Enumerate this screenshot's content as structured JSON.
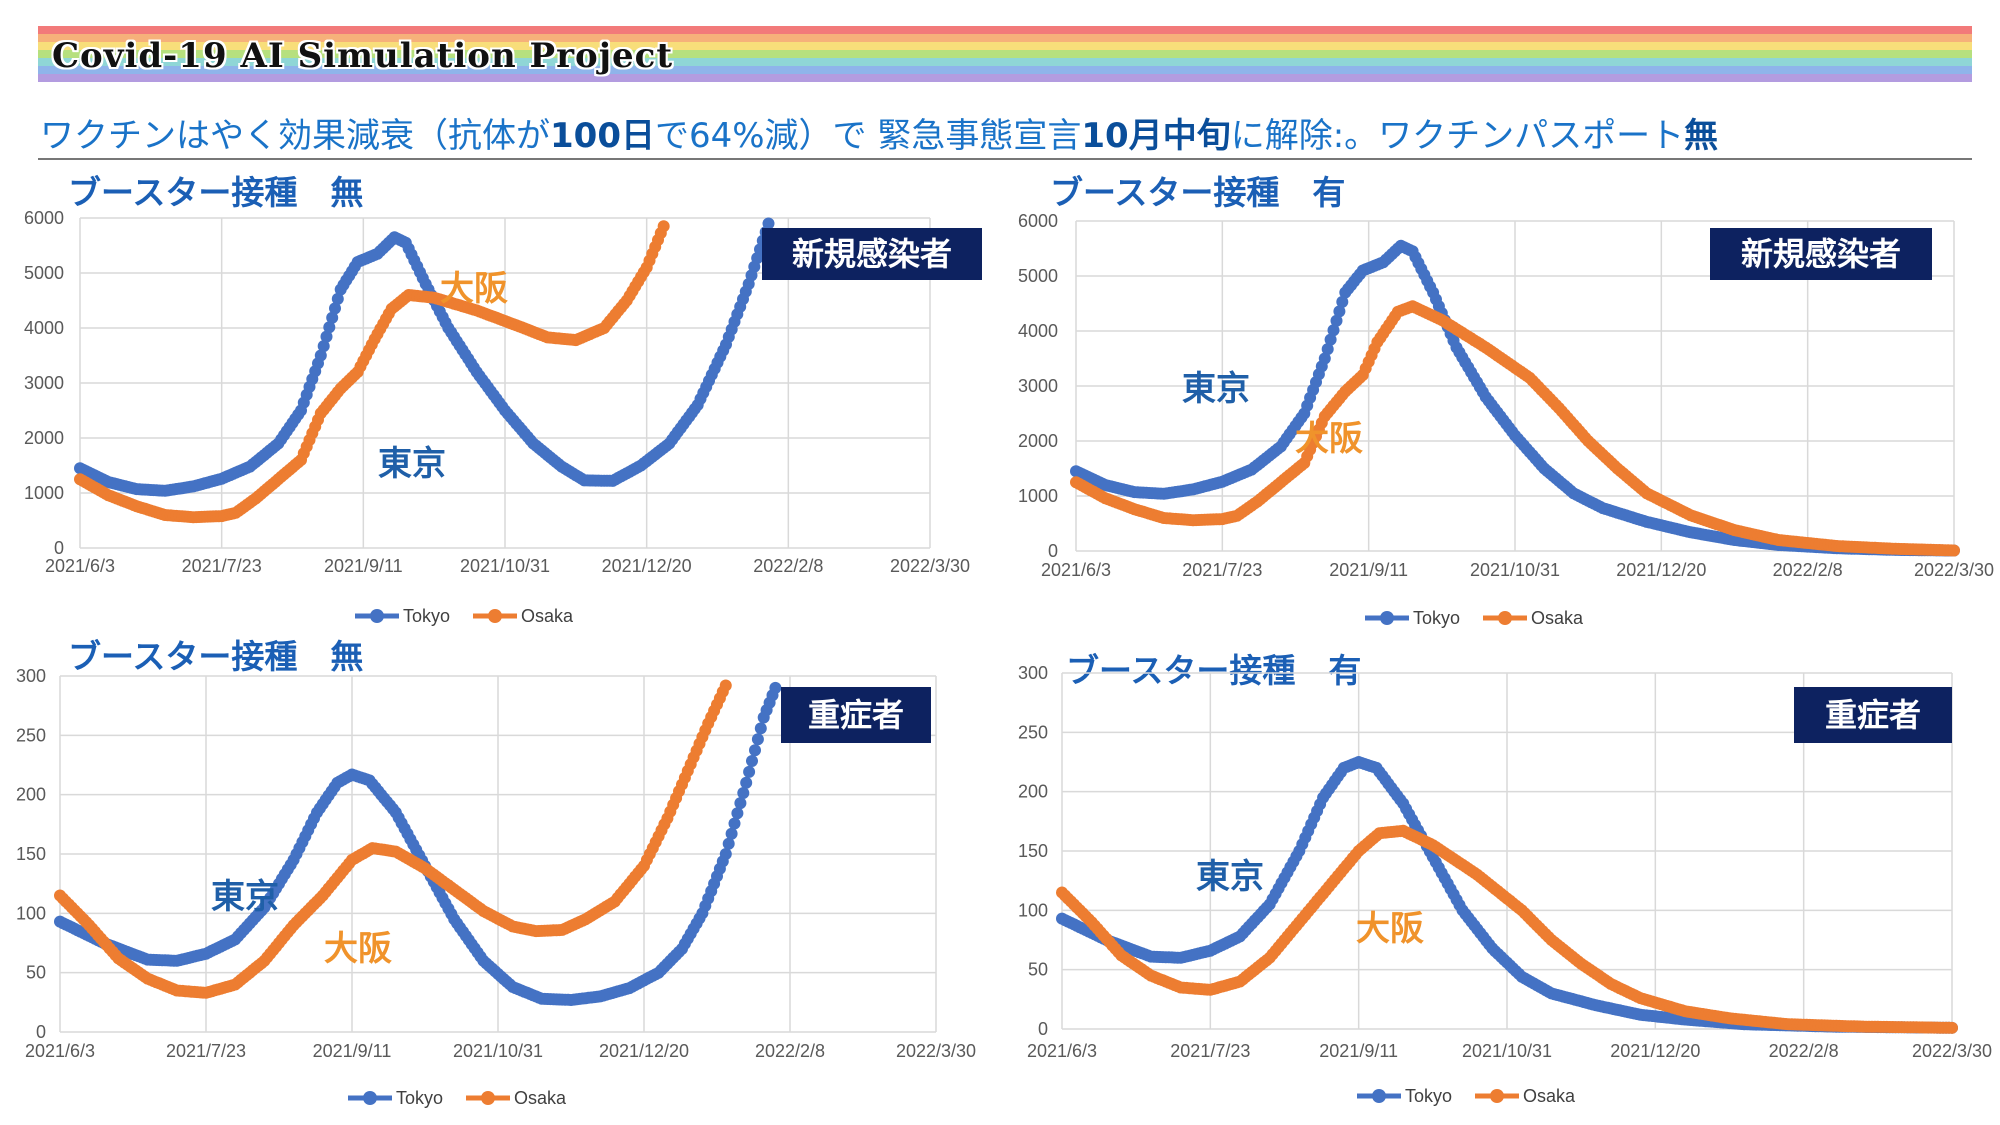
{
  "banner": {
    "title": "Covid-19 AI Simulation Project",
    "stripe_colors": [
      "#f27a7a",
      "#f6b17a",
      "#f8de7a",
      "#b6e07e",
      "#8fd6d6",
      "#8fb4ea",
      "#b39ce0"
    ]
  },
  "subtitle": {
    "part1": "ワクチンはやく効果減衰（抗体が",
    "part2": "100日",
    "part3": "で64%減）で 緊急事態宣言",
    "part4": "10月中旬",
    "part5": "に解除:。ワクチンパスポート",
    "part6": "無"
  },
  "colors": {
    "tokyo": "#4472c4",
    "osaka": "#ed7d31",
    "label_tokyo": "#1f5fa8",
    "label_osaka": "#f0932b",
    "badge_bg": "#0d2260"
  },
  "panels": [
    {
      "title": "ブースター接種　無",
      "badge": "新規感染者"
    },
    {
      "title": "ブースター接種　有",
      "badge": "新規感染者"
    },
    {
      "title": "ブースター接種　無",
      "badge": "重症者"
    },
    {
      "title": "ブースター接種　有",
      "badge": "重症者"
    }
  ],
  "chart_data": [
    {
      "type": "scatter",
      "title": "ブースター接種　無",
      "badge": "新規感染者",
      "x_ticks": [
        "2021/6/3",
        "2021/7/23",
        "2021/9/11",
        "2021/10/31",
        "2021/12/20",
        "2022/2/8",
        "2022/3/30"
      ],
      "ylim": [
        0,
        6000
      ],
      "y_ticks": [
        0,
        1000,
        2000,
        3000,
        4000,
        5000,
        6000
      ],
      "grid": true,
      "legend": "bottom",
      "annotations": [
        {
          "text": "大阪",
          "series": "Osaka"
        },
        {
          "text": "東京",
          "series": "Tokyo"
        }
      ],
      "series": [
        {
          "name": "Tokyo",
          "points": [
            [
              0,
              1450
            ],
            [
              10,
              1200
            ],
            [
              20,
              1070
            ],
            [
              30,
              1040
            ],
            [
              40,
              1120
            ],
            [
              50,
              1260
            ],
            [
              60,
              1480
            ],
            [
              70,
              1900
            ],
            [
              78,
              2500
            ],
            [
              85,
              3500
            ],
            [
              92,
              4700
            ],
            [
              98,
              5200
            ],
            [
              105,
              5350
            ],
            [
              111,
              5650
            ],
            [
              115,
              5550
            ],
            [
              122,
              4800
            ],
            [
              130,
              4000
            ],
            [
              140,
              3200
            ],
            [
              150,
              2500
            ],
            [
              160,
              1900
            ],
            [
              170,
              1480
            ],
            [
              178,
              1230
            ],
            [
              188,
              1220
            ],
            [
              198,
              1500
            ],
            [
              208,
              1900
            ],
            [
              218,
              2600
            ],
            [
              228,
              3700
            ],
            [
              236,
              4800
            ],
            [
              243,
              5900
            ]
          ]
        },
        {
          "name": "Osaka",
          "points": [
            [
              0,
              1250
            ],
            [
              10,
              960
            ],
            [
              20,
              760
            ],
            [
              30,
              600
            ],
            [
              40,
              560
            ],
            [
              50,
              580
            ],
            [
              55,
              640
            ],
            [
              62,
              900
            ],
            [
              70,
              1250
            ],
            [
              78,
              1600
            ],
            [
              85,
              2450
            ],
            [
              92,
              2900
            ],
            [
              98,
              3200
            ],
            [
              104,
              3800
            ],
            [
              110,
              4350
            ],
            [
              116,
              4600
            ],
            [
              125,
              4550
            ],
            [
              140,
              4320
            ],
            [
              155,
              4030
            ],
            [
              165,
              3830
            ],
            [
              175,
              3780
            ],
            [
              185,
              4000
            ],
            [
              193,
              4500
            ],
            [
              200,
              5100
            ],
            [
              206,
              5850
            ]
          ]
        }
      ]
    },
    {
      "type": "scatter",
      "title": "ブースター接種　有",
      "badge": "新規感染者",
      "x_ticks": [
        "2021/6/3",
        "2021/7/23",
        "2021/9/11",
        "2021/10/31",
        "2021/12/20",
        "2022/2/8",
        "2022/3/30"
      ],
      "ylim": [
        0,
        6000
      ],
      "y_ticks": [
        0,
        1000,
        2000,
        3000,
        4000,
        5000,
        6000
      ],
      "grid": true,
      "legend": "bottom",
      "annotations": [
        {
          "text": "東京",
          "series": "Tokyo"
        },
        {
          "text": "大阪",
          "series": "Osaka"
        }
      ],
      "series": [
        {
          "name": "Tokyo",
          "points": [
            [
              0,
              1450
            ],
            [
              10,
              1200
            ],
            [
              20,
              1070
            ],
            [
              30,
              1040
            ],
            [
              40,
              1120
            ],
            [
              50,
              1260
            ],
            [
              60,
              1480
            ],
            [
              70,
              1900
            ],
            [
              78,
              2500
            ],
            [
              85,
              3500
            ],
            [
              92,
              4700
            ],
            [
              98,
              5100
            ],
            [
              105,
              5250
            ],
            [
              111,
              5550
            ],
            [
              115,
              5450
            ],
            [
              122,
              4700
            ],
            [
              130,
              3700
            ],
            [
              140,
              2800
            ],
            [
              150,
              2100
            ],
            [
              160,
              1500
            ],
            [
              170,
              1050
            ],
            [
              180,
              780
            ],
            [
              195,
              530
            ],
            [
              210,
              340
            ],
            [
              225,
              200
            ],
            [
              240,
              110
            ],
            [
              260,
              50
            ],
            [
              280,
              20
            ],
            [
              300,
              8
            ]
          ]
        },
        {
          "name": "Osaka",
          "points": [
            [
              0,
              1250
            ],
            [
              10,
              960
            ],
            [
              20,
              760
            ],
            [
              30,
              600
            ],
            [
              40,
              560
            ],
            [
              50,
              580
            ],
            [
              55,
              640
            ],
            [
              62,
              900
            ],
            [
              70,
              1250
            ],
            [
              78,
              1600
            ],
            [
              85,
              2450
            ],
            [
              92,
              2900
            ],
            [
              98,
              3200
            ],
            [
              103,
              3800
            ],
            [
              110,
              4350
            ],
            [
              115,
              4450
            ],
            [
              125,
              4200
            ],
            [
              140,
              3700
            ],
            [
              155,
              3150
            ],
            [
              165,
              2600
            ],
            [
              175,
              2000
            ],
            [
              185,
              1500
            ],
            [
              195,
              1050
            ],
            [
              210,
              650
            ],
            [
              225,
              380
            ],
            [
              240,
              200
            ],
            [
              260,
              90
            ],
            [
              280,
              40
            ],
            [
              300,
              10
            ]
          ]
        }
      ]
    },
    {
      "type": "scatter",
      "title": "ブースター接種　無",
      "badge": "重症者",
      "x_ticks": [
        "2021/6/3",
        "2021/7/23",
        "2021/9/11",
        "2021/10/31",
        "2021/12/20",
        "2022/2/8",
        "2022/3/30"
      ],
      "ylim": [
        0,
        300
      ],
      "y_ticks": [
        0,
        50,
        100,
        150,
        200,
        250,
        300
      ],
      "grid": true,
      "legend": "bottom",
      "annotations": [
        {
          "text": "東京",
          "series": "Tokyo"
        },
        {
          "text": "大阪",
          "series": "Osaka"
        }
      ],
      "series": [
        {
          "name": "Tokyo",
          "points": [
            [
              0,
              93
            ],
            [
              15,
              75
            ],
            [
              30,
              61
            ],
            [
              40,
              60
            ],
            [
              50,
              66
            ],
            [
              60,
              78
            ],
            [
              70,
              105
            ],
            [
              80,
              145
            ],
            [
              88,
              185
            ],
            [
              95,
              210
            ],
            [
              100,
              217
            ],
            [
              106,
              212
            ],
            [
              115,
              185
            ],
            [
              125,
              140
            ],
            [
              135,
              95
            ],
            [
              145,
              60
            ],
            [
              155,
              38
            ],
            [
              165,
              28
            ],
            [
              175,
              27
            ],
            [
              185,
              30
            ],
            [
              195,
              37
            ],
            [
              205,
              50
            ],
            [
              213,
              70
            ],
            [
              220,
              100
            ],
            [
              228,
              150
            ],
            [
              235,
              210
            ],
            [
              241,
              265
            ],
            [
              245,
              290
            ]
          ]
        },
        {
          "name": "Osaka",
          "points": [
            [
              0,
              115
            ],
            [
              10,
              90
            ],
            [
              20,
              62
            ],
            [
              30,
              45
            ],
            [
              40,
              35
            ],
            [
              50,
              33
            ],
            [
              60,
              40
            ],
            [
              70,
              60
            ],
            [
              80,
              90
            ],
            [
              90,
              115
            ],
            [
              100,
              145
            ],
            [
              107,
              155
            ],
            [
              115,
              152
            ],
            [
              125,
              138
            ],
            [
              135,
              120
            ],
            [
              145,
              102
            ],
            [
              155,
              89
            ],
            [
              163,
              85
            ],
            [
              172,
              86
            ],
            [
              180,
              95
            ],
            [
              190,
              110
            ],
            [
              200,
              140
            ],
            [
              208,
              180
            ],
            [
              215,
              220
            ],
            [
              222,
              260
            ],
            [
              228,
              292
            ]
          ]
        }
      ]
    },
    {
      "type": "scatter",
      "title": "ブースター接種　有",
      "badge": "重症者",
      "x_ticks": [
        "2021/6/3",
        "2021/7/23",
        "2021/9/11",
        "2021/10/31",
        "2021/12/20",
        "2022/2/8",
        "2022/3/30"
      ],
      "ylim": [
        0,
        300
      ],
      "y_ticks": [
        0,
        50,
        100,
        150,
        200,
        250,
        300
      ],
      "grid": true,
      "legend": "bottom",
      "annotations": [
        {
          "text": "東京",
          "series": "Tokyo"
        },
        {
          "text": "大阪",
          "series": "Osaka"
        }
      ],
      "series": [
        {
          "name": "Tokyo",
          "points": [
            [
              0,
              93
            ],
            [
              15,
              75
            ],
            [
              30,
              61
            ],
            [
              40,
              60
            ],
            [
              50,
              66
            ],
            [
              60,
              78
            ],
            [
              70,
              105
            ],
            [
              80,
              150
            ],
            [
              88,
              195
            ],
            [
              95,
              220
            ],
            [
              100,
              225
            ],
            [
              106,
              220
            ],
            [
              115,
              190
            ],
            [
              125,
              145
            ],
            [
              135,
              100
            ],
            [
              145,
              68
            ],
            [
              155,
              44
            ],
            [
              165,
              30
            ],
            [
              180,
              20
            ],
            [
              195,
              12
            ],
            [
              210,
              8
            ],
            [
              230,
              4
            ],
            [
              260,
              2
            ],
            [
              300,
              1
            ]
          ]
        },
        {
          "name": "Osaka",
          "points": [
            [
              0,
              115
            ],
            [
              10,
              90
            ],
            [
              20,
              62
            ],
            [
              30,
              45
            ],
            [
              40,
              35
            ],
            [
              50,
              33
            ],
            [
              60,
              40
            ],
            [
              70,
              60
            ],
            [
              80,
              90
            ],
            [
              90,
              120
            ],
            [
              100,
              150
            ],
            [
              107,
              165
            ],
            [
              115,
              167
            ],
            [
              125,
              155
            ],
            [
              140,
              130
            ],
            [
              155,
              100
            ],
            [
              165,
              75
            ],
            [
              175,
              55
            ],
            [
              185,
              38
            ],
            [
              195,
              26
            ],
            [
              210,
              15
            ],
            [
              225,
              9
            ],
            [
              245,
              4
            ],
            [
              270,
              2
            ],
            [
              300,
              1
            ]
          ]
        }
      ]
    }
  ]
}
